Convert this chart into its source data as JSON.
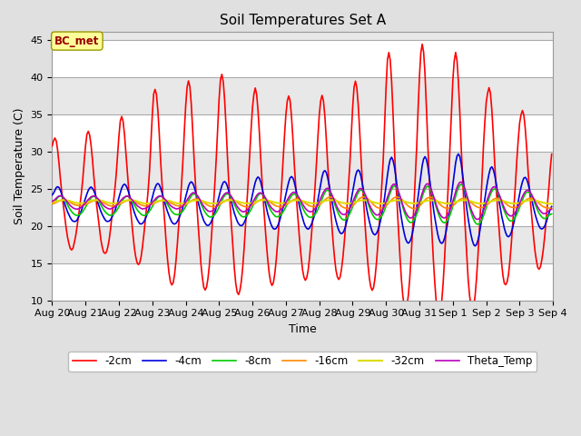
{
  "title": "Soil Temperatures Set A",
  "xlabel": "Time",
  "ylabel": "Soil Temperature (C)",
  "ylim": [
    10,
    46
  ],
  "annotation": "BC_met",
  "fig_facecolor": "#e0e0e0",
  "plot_facecolor": "#e8e8e8",
  "x_tick_labels": [
    "Aug 20",
    "Aug 21",
    "Aug 22",
    "Aug 23",
    "Aug 24",
    "Aug 25",
    "Aug 26",
    "Aug 27",
    "Aug 28",
    "Aug 29",
    "Aug 30",
    "Aug 31",
    "Sep 1",
    "Sep 2",
    "Sep 3",
    "Sep 4"
  ],
  "series": {
    "-2cm": {
      "color": "#ff0000",
      "lw": 1.2
    },
    "-4cm": {
      "color": "#0000dd",
      "lw": 1.2
    },
    "-8cm": {
      "color": "#00cc00",
      "lw": 1.2
    },
    "-16cm": {
      "color": "#ff8800",
      "lw": 1.2
    },
    "-32cm": {
      "color": "#dddd00",
      "lw": 1.5
    },
    "Theta_Temp": {
      "color": "#bb00bb",
      "lw": 1.2
    }
  },
  "legend_order": [
    "-2cm",
    "-4cm",
    "-8cm",
    "-16cm",
    "-32cm",
    "Theta_Temp"
  ]
}
